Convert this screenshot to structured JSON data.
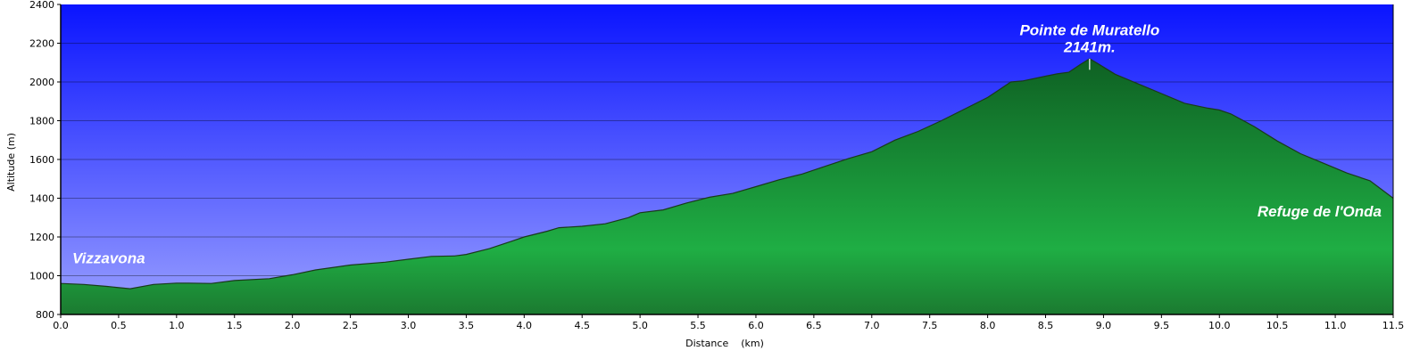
{
  "chart_data": {
    "type": "area",
    "title": "",
    "xlabel": "Distance    (km)",
    "ylabel": "Altitude (m)",
    "xlim": [
      0,
      11.5
    ],
    "ylim": [
      800,
      2400
    ],
    "grid": true,
    "x_ticks": [
      "0.0",
      "0.5",
      "1.0",
      "1.5",
      "2.0",
      "2.5",
      "3.0",
      "3.5",
      "4.0",
      "4.5",
      "5.0",
      "5.5",
      "6.0",
      "6.5",
      "7.0",
      "7.5",
      "8.0",
      "8.5",
      "9.0",
      "9.5",
      "10.0",
      "10.5",
      "11.0",
      "11.5"
    ],
    "y_ticks": [
      "800",
      "1000",
      "1200",
      "1400",
      "1600",
      "1800",
      "2000",
      "2200",
      "2400"
    ],
    "colors": {
      "sky_top": "#0a14ff",
      "sky_bottom": "#9aa0ff",
      "fill_top": "#0e5e22",
      "fill_mid": "#1fae44",
      "fill_bottom": "#1b7a30",
      "line": "#1a3a1a"
    },
    "series": [
      {
        "x": [
          0,
          0.2,
          0.4,
          0.6,
          0.8,
          1.0,
          1.1,
          1.3,
          1.5,
          1.8,
          2.0,
          2.2,
          2.5,
          2.8,
          3.0,
          3.2,
          3.4,
          3.5,
          3.7,
          3.9,
          4.0,
          4.2,
          4.3,
          4.5,
          4.7,
          4.9,
          5.0,
          5.2,
          5.4,
          5.6,
          5.8,
          6.0,
          6.2,
          6.4,
          6.6,
          6.8,
          7.0,
          7.2,
          7.4,
          7.6,
          7.8,
          8.0,
          8.1,
          8.2,
          8.3,
          8.5,
          8.6,
          8.7,
          8.8,
          8.88,
          8.95,
          9.1,
          9.3,
          9.5,
          9.7,
          9.9,
          10.0,
          10.1,
          10.3,
          10.5,
          10.7,
          10.9,
          11.1,
          11.3,
          11.5
        ],
        "y": [
          960,
          955,
          945,
          933,
          955,
          962,
          962,
          960,
          975,
          985,
          1005,
          1030,
          1055,
          1070,
          1085,
          1100,
          1102,
          1110,
          1140,
          1180,
          1200,
          1230,
          1248,
          1255,
          1268,
          1300,
          1325,
          1340,
          1375,
          1405,
          1425,
          1460,
          1495,
          1525,
          1565,
          1605,
          1640,
          1700,
          1745,
          1800,
          1860,
          1920,
          1960,
          2000,
          2005,
          2030,
          2042,
          2050,
          2090,
          2120,
          2095,
          2040,
          1990,
          1940,
          1890,
          1865,
          1855,
          1835,
          1770,
          1695,
          1630,
          1580,
          1530,
          1490,
          1400
        ]
      }
    ],
    "annotations": [
      {
        "text": "Vizzavona",
        "x": 0.1,
        "y": 1065
      },
      {
        "text": "Pointe de Muratello",
        "x": 8.88,
        "y": 2242
      },
      {
        "text": "2141m.",
        "x": 8.88,
        "y": 2155
      },
      {
        "text": "Refuge de l'Onda",
        "x": 11.4,
        "y": 1305
      }
    ]
  }
}
